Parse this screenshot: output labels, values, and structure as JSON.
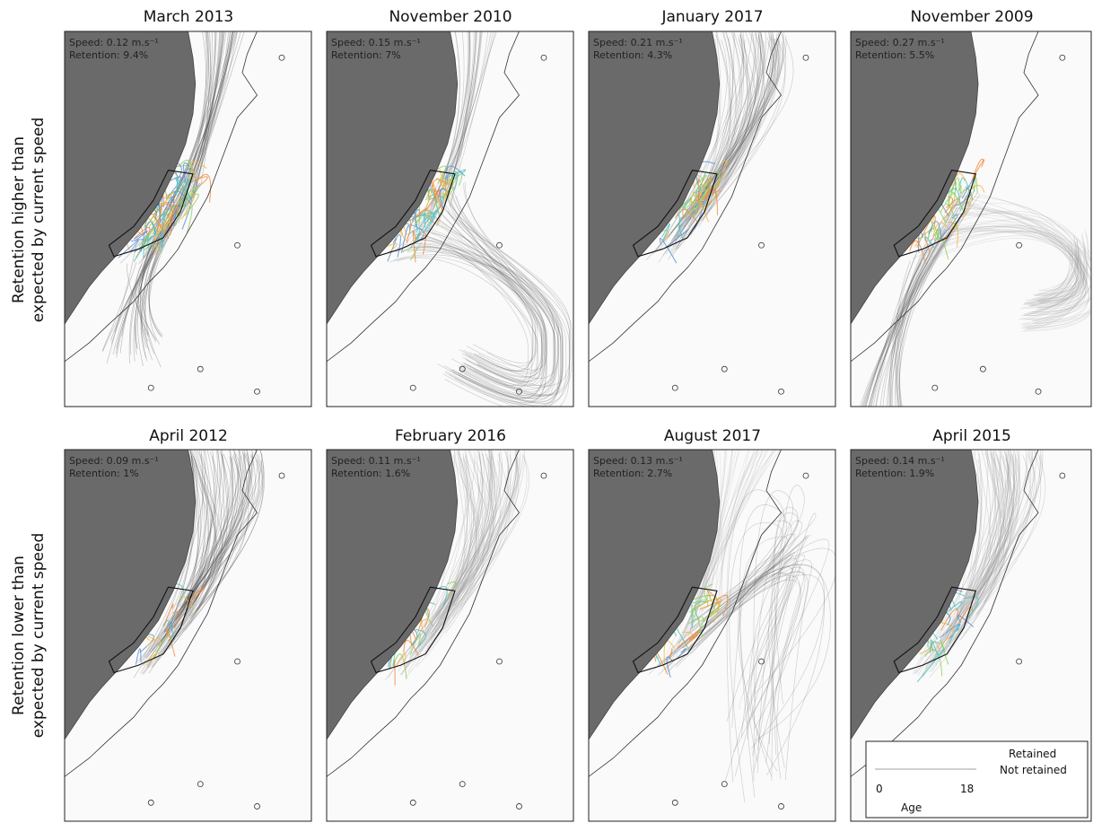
{
  "figure": {
    "row_labels": [
      {
        "line1": "Retention higher than",
        "line2": "expected by current speed"
      },
      {
        "line1": "Retention lower than",
        "line2": "expected by current speed"
      }
    ],
    "panels": [
      {
        "title": "March 2013",
        "speed": "Speed: 0.12 m.s⁻¹",
        "retention": "Retention: 9.4%",
        "retention_pct": 9.4,
        "speed_ms": 0.12,
        "pattern": "south-plume"
      },
      {
        "title": "November 2010",
        "speed": "Speed: 0.15 m.s⁻¹",
        "retention": "Retention: 7%",
        "retention_pct": 7,
        "speed_ms": 0.15,
        "pattern": "south-eddy"
      },
      {
        "title": "January 2017",
        "speed": "Speed: 0.21 m.s⁻¹",
        "retention": "Retention: 4.3%",
        "retention_pct": 4.3,
        "speed_ms": 0.21,
        "pattern": "north-dense"
      },
      {
        "title": "November 2009",
        "speed": "Speed: 0.27 m.s⁻¹",
        "retention": "Retention: 5.5%",
        "retention_pct": 5.5,
        "speed_ms": 0.27,
        "pattern": "east-eddy"
      },
      {
        "title": "April 2012",
        "speed": "Speed: 0.09 m.s⁻¹",
        "retention": "Retention: 1%",
        "retention_pct": 1,
        "speed_ms": 0.09,
        "pattern": "north-dark"
      },
      {
        "title": "February 2016",
        "speed": "Speed: 0.11 m.s⁻¹",
        "retention": "Retention: 1.6%",
        "retention_pct": 1.6,
        "speed_ms": 0.11,
        "pattern": "north-light"
      },
      {
        "title": "August 2017",
        "speed": "Speed: 0.13 m.s⁻¹",
        "retention": "Retention: 2.7%",
        "retention_pct": 2.7,
        "speed_ms": 0.13,
        "pattern": "offshore-tangle"
      },
      {
        "title": "April 2015",
        "speed": "Speed: 0.14 m.s⁻¹",
        "retention": "Retention: 1.9%",
        "retention_pct": 1.9,
        "speed_ms": 0.14,
        "pattern": "north-light"
      }
    ],
    "legend": {
      "retained": "Retained",
      "not_retained": "Not retained",
      "age_min": "0",
      "age_max": "18",
      "age_label": "Age",
      "retained_gradient": [
        "#5b8fd6",
        "#4cc3c0",
        "#8fd05a",
        "#f2b640",
        "#f08a3c"
      ]
    },
    "colors": {
      "land": "#6a6a6a",
      "sea": "#fafafa",
      "not_retained": "#9a9a9a",
      "not_retained_dark": "#3a3a3a"
    }
  }
}
